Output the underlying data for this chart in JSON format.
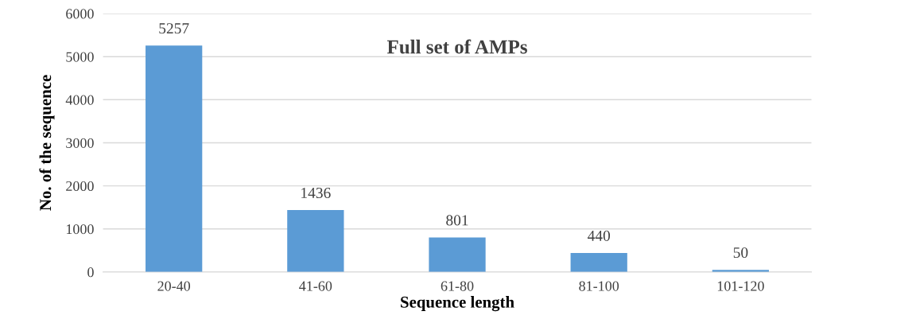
{
  "chart_data": {
    "type": "bar",
    "title": "Full set of AMPs",
    "xlabel": "Sequence length",
    "ylabel": "No. of the sequence",
    "categories": [
      "20-40",
      "41-60",
      "61-80",
      "81-100",
      "101-120"
    ],
    "values": [
      5257,
      1436,
      801,
      440,
      50
    ],
    "color": "#5b9bd5",
    "ylim": [
      0,
      6000
    ],
    "yticks": [
      0,
      1000,
      2000,
      3000,
      4000,
      5000,
      6000
    ],
    "grid": "y",
    "data_labels": true
  }
}
